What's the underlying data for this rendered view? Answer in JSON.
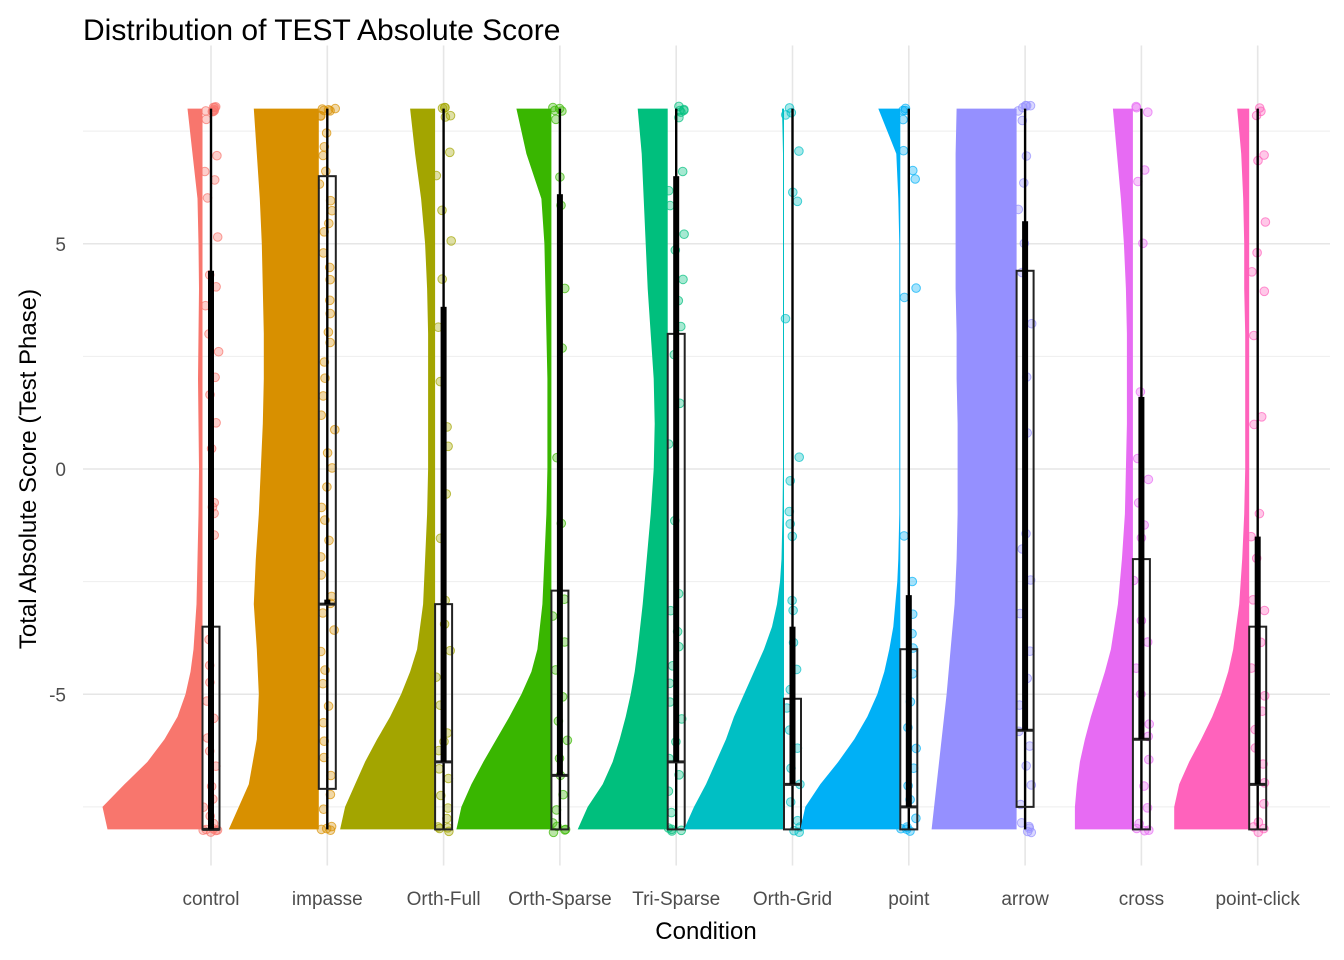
{
  "chart_data": {
    "type": "raincloud",
    "title": "Distribution of TEST Absolute Score",
    "xlabel": "Condition",
    "ylabel": "Total Absolute Score (Test Phase)",
    "ylim": [
      -8.8,
      9.4
    ],
    "yticks": [
      -5,
      0,
      5
    ],
    "ytick_labels": [
      "-5",
      "0",
      "5"
    ],
    "grid": true,
    "legend": "none",
    "categories": [
      "control",
      "impasse",
      "Orth-Full",
      "Orth-Sparse",
      "Tri-Sparse",
      "Orth-Grid",
      "point",
      "arrow",
      "cross",
      "point-click"
    ],
    "colors": [
      "#F8766D",
      "#D89000",
      "#A3A500",
      "#39B600",
      "#00BF7D",
      "#00BFC4",
      "#00B0F6",
      "#9590FF",
      "#E76BF3",
      "#FF62BC"
    ],
    "series": [
      {
        "boxplot": {
          "min": -8,
          "q1": -8,
          "median": -8,
          "q3": -3.5,
          "max": 8,
          "mean": 4.4
        },
        "density_y": [
          -8,
          -7.5,
          -7,
          -6.5,
          -6,
          -5.5,
          -5,
          -4.5,
          -4,
          -3,
          -2,
          -1,
          0,
          1,
          2,
          3,
          4,
          5,
          6,
          7,
          8
        ],
        "density_w": [
          0.95,
          1.0,
          0.78,
          0.55,
          0.38,
          0.25,
          0.17,
          0.12,
          0.09,
          0.06,
          0.05,
          0.04,
          0.035,
          0.04,
          0.045,
          0.04,
          0.035,
          0.04,
          0.05,
          0.1,
          0.15
        ],
        "points": [
          8,
          8,
          8,
          8,
          8,
          8,
          8,
          7.9,
          7.8,
          7,
          6.6,
          6.4,
          6,
          5.2,
          4.3,
          4,
          3.6,
          3,
          2.6,
          2,
          1.7,
          1,
          0.5,
          -0.8,
          -0.9,
          -1,
          -1.5,
          -3.8,
          -4.3,
          -4.8,
          -5.2,
          -5.6,
          -6,
          -6.3,
          -6.6,
          -7,
          -7.3,
          -7.5,
          -7.7,
          -7.9,
          -8,
          -8,
          -8,
          -8,
          -8,
          -8
        ]
      },
      {
        "boxplot": {
          "min": -8,
          "q1": -7.1,
          "median": -3,
          "q3": 6.5,
          "max": 8,
          "mean": -2.9
        },
        "density_y": [
          -8,
          -7,
          -6,
          -5,
          -4,
          -3,
          -2,
          -1,
          0,
          1,
          2,
          3,
          4,
          5,
          6,
          7,
          8
        ],
        "density_w": [
          0.9,
          0.7,
          0.62,
          0.6,
          0.62,
          0.65,
          0.63,
          0.6,
          0.58,
          0.56,
          0.55,
          0.55,
          0.56,
          0.57,
          0.59,
          0.62,
          0.65
        ],
        "points": [
          8,
          8,
          8,
          8,
          8,
          7.9,
          7.8,
          7.5,
          7.2,
          7,
          6.6,
          6.3,
          6,
          5.8,
          5.5,
          5.2,
          4.8,
          4.5,
          4.2,
          3.8,
          3.4,
          3,
          2.8,
          2.4,
          2,
          1.6,
          1.2,
          0.9,
          0.4,
          0,
          -0.4,
          -0.8,
          -1.2,
          -1.6,
          -2,
          -2.4,
          -2.8,
          -3,
          -3.2,
          -3.6,
          -4,
          -4.4,
          -4.8,
          -5.2,
          -5.6,
          -6,
          -6.4,
          -6.8,
          -7.2,
          -7.6,
          -8,
          -8,
          -8,
          -8
        ]
      },
      {
        "boxplot": {
          "min": -8,
          "q1": -8,
          "median": -6.5,
          "q3": -3,
          "max": 8,
          "mean": 3.6
        },
        "density_y": [
          -8,
          -7.5,
          -7,
          -6.5,
          -6,
          -5.5,
          -5,
          -4.5,
          -4,
          -3,
          -2,
          -1,
          0,
          1,
          2,
          3,
          4,
          5,
          6,
          7,
          8
        ],
        "density_w": [
          0.95,
          0.9,
          0.8,
          0.7,
          0.58,
          0.45,
          0.34,
          0.25,
          0.18,
          0.12,
          0.1,
          0.08,
          0.07,
          0.07,
          0.07,
          0.07,
          0.08,
          0.1,
          0.14,
          0.2,
          0.25
        ],
        "points": [
          8,
          8,
          8,
          7.9,
          7.8,
          7,
          6.5,
          5.8,
          5,
          4.2,
          3.2,
          2,
          1,
          0.5,
          -0.5,
          -1.5,
          -2.9,
          -3.5,
          -4,
          -4.6,
          -5.2,
          -5.8,
          -6,
          -6.3,
          -6.6,
          -6.9,
          -7.2,
          -7.5,
          -7.8,
          -8,
          -8,
          -8,
          -8
        ]
      },
      {
        "boxplot": {
          "min": -8,
          "q1": -8,
          "median": -6.8,
          "q3": -2.7,
          "max": 8,
          "mean": 6.1
        },
        "density_y": [
          -8,
          -7.5,
          -7,
          -6.5,
          -6,
          -5.5,
          -5,
          -4.5,
          -4,
          -3,
          -2,
          -1,
          0,
          1,
          2,
          3,
          4,
          5,
          6,
          7,
          8
        ],
        "density_w": [
          0.95,
          0.9,
          0.8,
          0.68,
          0.55,
          0.42,
          0.3,
          0.2,
          0.14,
          0.09,
          0.07,
          0.05,
          0.04,
          0.04,
          0.04,
          0.05,
          0.06,
          0.07,
          0.1,
          0.25,
          0.35
        ],
        "points": [
          8,
          8,
          8,
          7.9,
          7.8,
          6.5,
          5.8,
          4,
          2.7,
          0.2,
          -1.2,
          -2.9,
          -3.2,
          -3.8,
          -4.5,
          -5,
          -5.6,
          -6,
          -6.4,
          -6.8,
          -7.2,
          -7.6,
          -7.9,
          -8,
          -8,
          -8,
          -8
        ]
      },
      {
        "boxplot": {
          "min": -8,
          "q1": -8,
          "median": -6.5,
          "q3": 3,
          "max": 8,
          "mean": 6.5
        },
        "density_y": [
          -8,
          -7.5,
          -7,
          -6.5,
          -6,
          -5.5,
          -5,
          -4.5,
          -4,
          -3,
          -2,
          -1,
          0,
          1,
          2,
          3,
          4,
          5,
          6,
          7,
          8
        ],
        "density_w": [
          0.9,
          0.8,
          0.65,
          0.55,
          0.48,
          0.42,
          0.37,
          0.33,
          0.3,
          0.25,
          0.21,
          0.17,
          0.14,
          0.13,
          0.14,
          0.17,
          0.2,
          0.22,
          0.24,
          0.26,
          0.3
        ],
        "points": [
          8,
          8,
          8,
          8,
          7.9,
          7.8,
          6.6,
          6.2,
          5.8,
          5.2,
          4.8,
          4.2,
          3.8,
          3.2,
          2.5,
          1.4,
          0.6,
          -1.1,
          -2.8,
          -3.2,
          -3.6,
          -4,
          -4.4,
          -4.8,
          -5.2,
          -5.6,
          -6,
          -6.4,
          -6.8,
          -7.2,
          -7.6,
          -8,
          -8,
          -8,
          -8
        ]
      },
      {
        "boxplot": {
          "min": -8,
          "q1": -8,
          "median": -7,
          "q3": -5.1,
          "max": 8,
          "mean": -3.5
        },
        "density_y": [
          -8,
          -7.5,
          -7,
          -6.5,
          -6,
          -5.5,
          -5,
          -4.5,
          -4,
          -3.5,
          -3,
          -2.5,
          -2,
          -1,
          0,
          1,
          2,
          3,
          4,
          5,
          6,
          7,
          8
        ],
        "density_w": [
          1.0,
          0.9,
          0.78,
          0.68,
          0.58,
          0.5,
          0.4,
          0.3,
          0.2,
          0.12,
          0.07,
          0.04,
          0.025,
          0.015,
          0.01,
          0.01,
          0.01,
          0.01,
          0.01,
          0.01,
          0.01,
          0.01,
          0.02
        ],
        "points": [
          8,
          7.9,
          7.8,
          7,
          6.2,
          5.9,
          3.3,
          0.3,
          -0.2,
          -1,
          -1.2,
          -1.5,
          -2.9,
          -3.2,
          -3.8,
          -4.4,
          -4.9,
          -5.3,
          -5.8,
          -6.2,
          -6.6,
          -7,
          -7.4,
          -7.8,
          -8,
          -8,
          -8
        ]
      },
      {
        "boxplot": {
          "min": -8,
          "q1": -8,
          "median": -7.5,
          "q3": -4,
          "max": 8,
          "mean": -2.8
        },
        "density_y": [
          -8,
          -7.5,
          -7,
          -6.5,
          -6,
          -5.5,
          -5,
          -4.5,
          -4,
          -3.5,
          -3,
          -2.5,
          -2,
          -1,
          0,
          1,
          2,
          3,
          4,
          5,
          6,
          7,
          8
        ],
        "density_w": [
          1.0,
          0.95,
          0.8,
          0.62,
          0.46,
          0.33,
          0.23,
          0.16,
          0.11,
          0.07,
          0.05,
          0.03,
          0.02,
          0.01,
          0.01,
          0.01,
          0.01,
          0.01,
          0.01,
          0.01,
          0.02,
          0.04,
          0.22
        ],
        "points": [
          8,
          8,
          7.9,
          7.8,
          7,
          6.6,
          6.4,
          4,
          3.8,
          -1.5,
          -2.5,
          -3.2,
          -3.6,
          -4,
          -4.6,
          -5.2,
          -5.8,
          -6.2,
          -6.6,
          -7,
          -7.4,
          -7.8,
          -8,
          -8,
          -8,
          -8
        ]
      },
      {
        "boxplot": {
          "min": -8,
          "q1": -7.5,
          "median": -5.8,
          "q3": 4.4,
          "max": 8,
          "mean": 5.5
        },
        "density_y": [
          -8,
          -7,
          -6,
          -5,
          -4,
          -3,
          -2,
          -1,
          0,
          1,
          2,
          3,
          4,
          5,
          6,
          7,
          8
        ],
        "density_w": [
          0.85,
          0.8,
          0.75,
          0.7,
          0.66,
          0.62,
          0.6,
          0.59,
          0.59,
          0.59,
          0.6,
          0.6,
          0.61,
          0.61,
          0.61,
          0.61,
          0.6
        ],
        "points": [
          8,
          8,
          8,
          8,
          7.9,
          7.8,
          7,
          6.4,
          5.8,
          5,
          4.4,
          3.2,
          2,
          0.8,
          -1.5,
          -1.8,
          -2.5,
          -3.2,
          -4,
          -4.6,
          -5.2,
          -5.8,
          -6.2,
          -6.6,
          -7,
          -7.4,
          -7.8,
          -8,
          -8,
          -8,
          -8
        ]
      },
      {
        "boxplot": {
          "min": -8,
          "q1": -8,
          "median": -6,
          "q3": -2,
          "max": 8,
          "mean": 1.6
        },
        "density_y": [
          -8,
          -7.5,
          -7,
          -6.5,
          -6,
          -5.5,
          -5,
          -4.5,
          -4,
          -3,
          -2,
          -1,
          0,
          1,
          2,
          3,
          4,
          5,
          6,
          7,
          8
        ],
        "density_w": [
          0.58,
          0.58,
          0.56,
          0.53,
          0.48,
          0.42,
          0.35,
          0.28,
          0.22,
          0.15,
          0.11,
          0.08,
          0.07,
          0.06,
          0.06,
          0.06,
          0.07,
          0.09,
          0.12,
          0.16,
          0.2
        ],
        "points": [
          8,
          8,
          7.9,
          6.6,
          6.4,
          5,
          1.7,
          0.2,
          -0.2,
          -0.8,
          -1.2,
          -1.5,
          -2.5,
          -3.3,
          -3.8,
          -4.4,
          -5,
          -5.6,
          -6,
          -6.5,
          -7,
          -7.5,
          -7.9,
          -8,
          -8,
          -8
        ]
      },
      {
        "boxplot": {
          "min": -8,
          "q1": -8,
          "median": -7,
          "q3": -3.5,
          "max": 8,
          "mean": -1.5
        },
        "density_y": [
          -8,
          -7.5,
          -7,
          -6.5,
          -6,
          -5.5,
          -5,
          -4.5,
          -4,
          -3,
          -2,
          -1,
          0,
          1,
          2,
          3,
          4,
          5,
          6,
          7,
          8
        ],
        "density_w": [
          0.75,
          0.75,
          0.7,
          0.6,
          0.48,
          0.37,
          0.28,
          0.21,
          0.16,
          0.1,
          0.07,
          0.05,
          0.04,
          0.04,
          0.04,
          0.04,
          0.05,
          0.05,
          0.06,
          0.08,
          0.12
        ],
        "points": [
          8,
          8,
          7.9,
          7,
          6.8,
          5.5,
          4.8,
          4.4,
          4,
          3,
          1.1,
          1,
          -1,
          -1.5,
          -2,
          -2.9,
          -3.2,
          -3.8,
          -4.4,
          -5,
          -5.4,
          -5.8,
          -6.2,
          -6.6,
          -7,
          -7.4,
          -7.8,
          -8,
          -8,
          -8
        ]
      }
    ]
  }
}
